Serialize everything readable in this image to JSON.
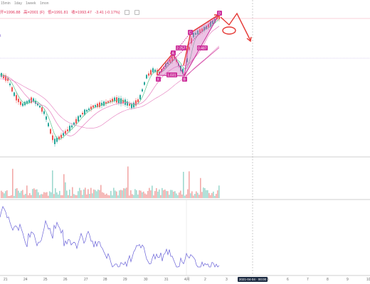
{
  "toolbar": {
    "tabs": [
      "15min",
      "1day",
      "1week",
      "1mon"
    ]
  },
  "ohlc": {
    "open": "开=1996.88",
    "high": "高=2001 (F)",
    "low": "低=1991.81",
    "close": "收=1993.47",
    "change": "-3.41 (-0.17%)"
  },
  "side_stub": "t",
  "pattern_labels": {
    "X": "X",
    "A": "A",
    "B": "B",
    "C": "C",
    "D": "D",
    "xb": "1.031",
    "ac": "2.257",
    "bd": "0.487"
  },
  "x_axis": {
    "labels": [
      "21",
      "24",
      "25",
      "26",
      "27",
      "28",
      "29",
      "30",
      "31",
      "4月",
      "2",
      "3",
      "5",
      "6",
      "7",
      "8",
      "9",
      "10"
    ],
    "cursor_time": "2021-04-04 · 00:00"
  },
  "colors": {
    "up": "#26a69a",
    "down": "#ef5350",
    "pattern": "#cc2f9a",
    "pattern_fill": "#d477c4",
    "projection": "#e53935",
    "ma_pink": "#e57bbd",
    "ma_green": "#58c48e",
    "osc": "#6a63d8"
  }
}
